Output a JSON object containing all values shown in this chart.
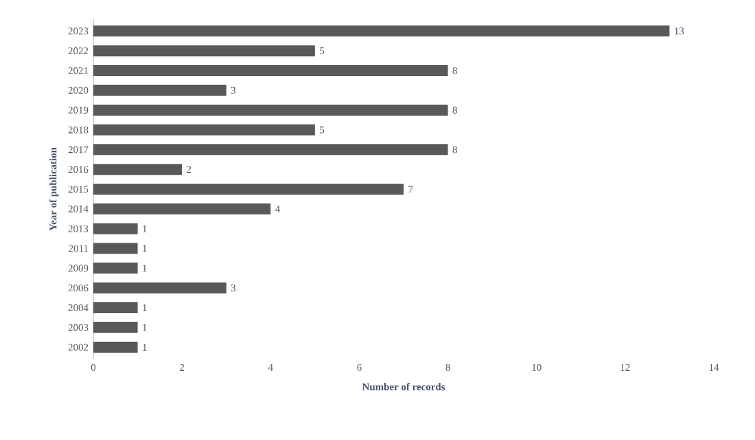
{
  "chart_data": {
    "type": "bar",
    "orientation": "horizontal",
    "xlabel": "Number of records",
    "ylabel": "Year of publication",
    "categories": [
      "2023",
      "2022",
      "2021",
      "2020",
      "2019",
      "2018",
      "2017",
      "2016",
      "2015",
      "2014",
      "2013",
      "2011",
      "2009",
      "2006",
      "2004",
      "2003",
      "2002"
    ],
    "values": [
      13,
      5,
      8,
      3,
      8,
      5,
      8,
      2,
      7,
      4,
      1,
      1,
      1,
      3,
      1,
      1,
      1
    ],
    "color": "#595959",
    "xlim": [
      0,
      14
    ],
    "xticks": [
      0,
      2,
      4,
      6,
      8,
      10,
      12,
      14
    ],
    "data_labels": true
  }
}
